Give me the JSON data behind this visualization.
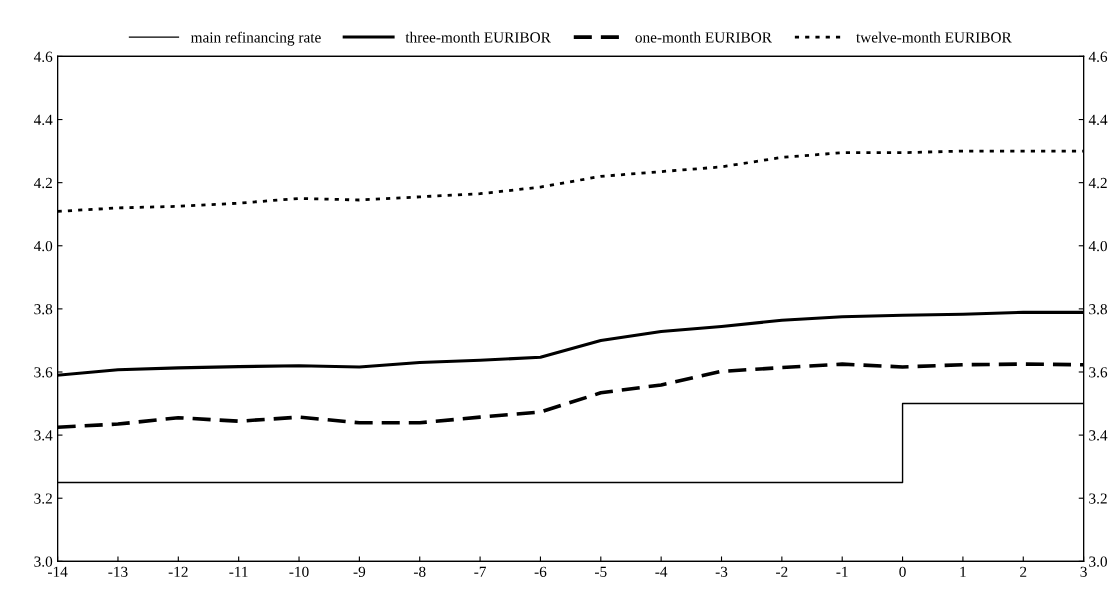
{
  "chart_data": {
    "type": "line",
    "x": [
      -14,
      -13,
      -12,
      -11,
      -10,
      -9,
      -8,
      -7,
      -6,
      -5,
      -4,
      -3,
      -2,
      -1,
      0,
      1,
      2,
      3
    ],
    "series": [
      {
        "name": "main refinancing rate",
        "type": "step",
        "color": "#000000",
        "line_style": "solid",
        "x": [
          -14,
          0,
          3
        ],
        "values": [
          3.25,
          3.5,
          3.5
        ]
      },
      {
        "name": "three-month EURIBOR",
        "color": "#000000",
        "line_style": "solid",
        "values": [
          3.59,
          3.607,
          3.613,
          3.617,
          3.62,
          3.616,
          3.63,
          3.637,
          3.647,
          3.7,
          3.728,
          3.744,
          3.764,
          3.775,
          3.78,
          3.783,
          3.789,
          3.789
        ]
      },
      {
        "name": "one-month EURIBOR",
        "color": "#000000",
        "line_style": "dashed",
        "values": [
          3.425,
          3.435,
          3.455,
          3.444,
          3.457,
          3.439,
          3.439,
          3.457,
          3.473,
          3.534,
          3.559,
          3.602,
          3.614,
          3.625,
          3.616,
          3.623,
          3.625,
          3.623
        ]
      },
      {
        "name": "twelve-month EURIBOR",
        "color": "#000000",
        "line_style": "dotted",
        "values": [
          4.109,
          4.12,
          4.125,
          4.135,
          4.15,
          4.145,
          4.155,
          4.165,
          4.186,
          4.22,
          4.235,
          4.25,
          4.28,
          4.295,
          4.295,
          4.3,
          4.3,
          4.3
        ]
      }
    ],
    "xlim": [
      -14,
      3
    ],
    "xticks": [
      -14,
      -13,
      -12,
      -11,
      -10,
      -9,
      -8,
      -7,
      -6,
      -5,
      -4,
      -3,
      -2,
      -1,
      0,
      1,
      2,
      3
    ],
    "ylim": [
      3.0,
      4.6
    ],
    "yticks": [
      {
        "value": 3.0,
        "label": "3.0"
      },
      {
        "value": 3.2,
        "label": "3.2"
      },
      {
        "value": 3.4,
        "label": "3.4"
      },
      {
        "value": 3.6,
        "label": "3.6"
      },
      {
        "value": 3.8,
        "label": "3.8"
      },
      {
        "value": 4.0,
        "label": "4.0"
      },
      {
        "value": 4.2,
        "label": "4.2"
      },
      {
        "value": 4.4,
        "label": "4.4"
      },
      {
        "value": 4.6,
        "label": "4.6"
      }
    ],
    "y2lim": [
      3.0,
      4.6
    ],
    "y2ticks": [
      {
        "value": 3.0,
        "label": "3.0"
      },
      {
        "value": 3.2,
        "label": "3.2"
      },
      {
        "value": 3.4,
        "label": "3.4"
      },
      {
        "value": 3.6,
        "label": "3.6"
      },
      {
        "value": 3.8,
        "label": "3.8"
      },
      {
        "value": 4.0,
        "label": "4.0"
      },
      {
        "value": 4.2,
        "label": "4.2"
      },
      {
        "value": 4.4,
        "label": "4.4"
      },
      {
        "value": 4.6,
        "label": "4.6"
      }
    ],
    "grid": false,
    "legend": "top"
  }
}
